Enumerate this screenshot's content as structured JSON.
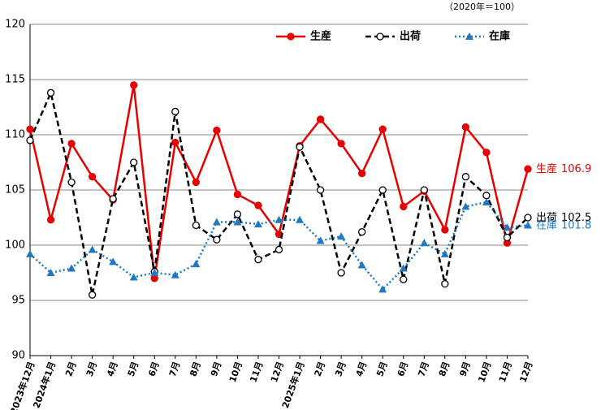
{
  "chart_data": {
    "type": "line",
    "subtitle": "（2020年＝100）",
    "categories": [
      "2023年12月",
      "2024年1月",
      "2月",
      "3月",
      "4月",
      "5月",
      "6月",
      "7月",
      "8月",
      "9月",
      "10月",
      "11月",
      "12月",
      "2025年1月",
      "2月",
      "3月",
      "4月",
      "5月",
      "6月",
      "7月",
      "8月",
      "9月",
      "10月",
      "11月",
      "12月"
    ],
    "series": [
      {
        "name": "生産",
        "color": "#e60000",
        "dash": "solid",
        "marker": "circle-filled",
        "values": [
          110.5,
          102.3,
          109.2,
          106.2,
          104.1,
          114.5,
          97.0,
          109.3,
          105.7,
          110.4,
          104.6,
          103.6,
          101.0,
          109.0,
          111.4,
          109.2,
          106.5,
          110.5,
          103.5,
          104.9,
          101.4,
          110.7,
          108.4,
          100.2,
          106.9
        ]
      },
      {
        "name": "出荷",
        "color": "#000000",
        "dash": "dashed",
        "marker": "circle-open",
        "values": [
          109.5,
          113.8,
          105.7,
          95.5,
          104.2,
          107.5,
          97.6,
          112.1,
          101.8,
          100.5,
          102.8,
          98.7,
          99.6,
          108.9,
          105.0,
          97.5,
          101.2,
          105.0,
          96.9,
          105.0,
          96.5,
          106.2,
          104.5,
          100.7,
          102.5
        ]
      },
      {
        "name": "在庫",
        "color": "#1f78c1",
        "dash": "dotted",
        "marker": "triangle",
        "values": [
          99.2,
          97.5,
          97.9,
          99.6,
          98.5,
          97.1,
          97.5,
          97.3,
          98.3,
          102.1,
          102.1,
          101.9,
          102.3,
          102.3,
          100.4,
          100.8,
          98.2,
          96.0,
          97.9,
          100.2,
          99.2,
          103.5,
          103.9,
          101.6,
          101.8
        ]
      }
    ],
    "ylim": [
      90,
      120
    ],
    "yticks": [
      90,
      95,
      100,
      105,
      110,
      115,
      120
    ],
    "grid": true,
    "legend": "top-right"
  }
}
